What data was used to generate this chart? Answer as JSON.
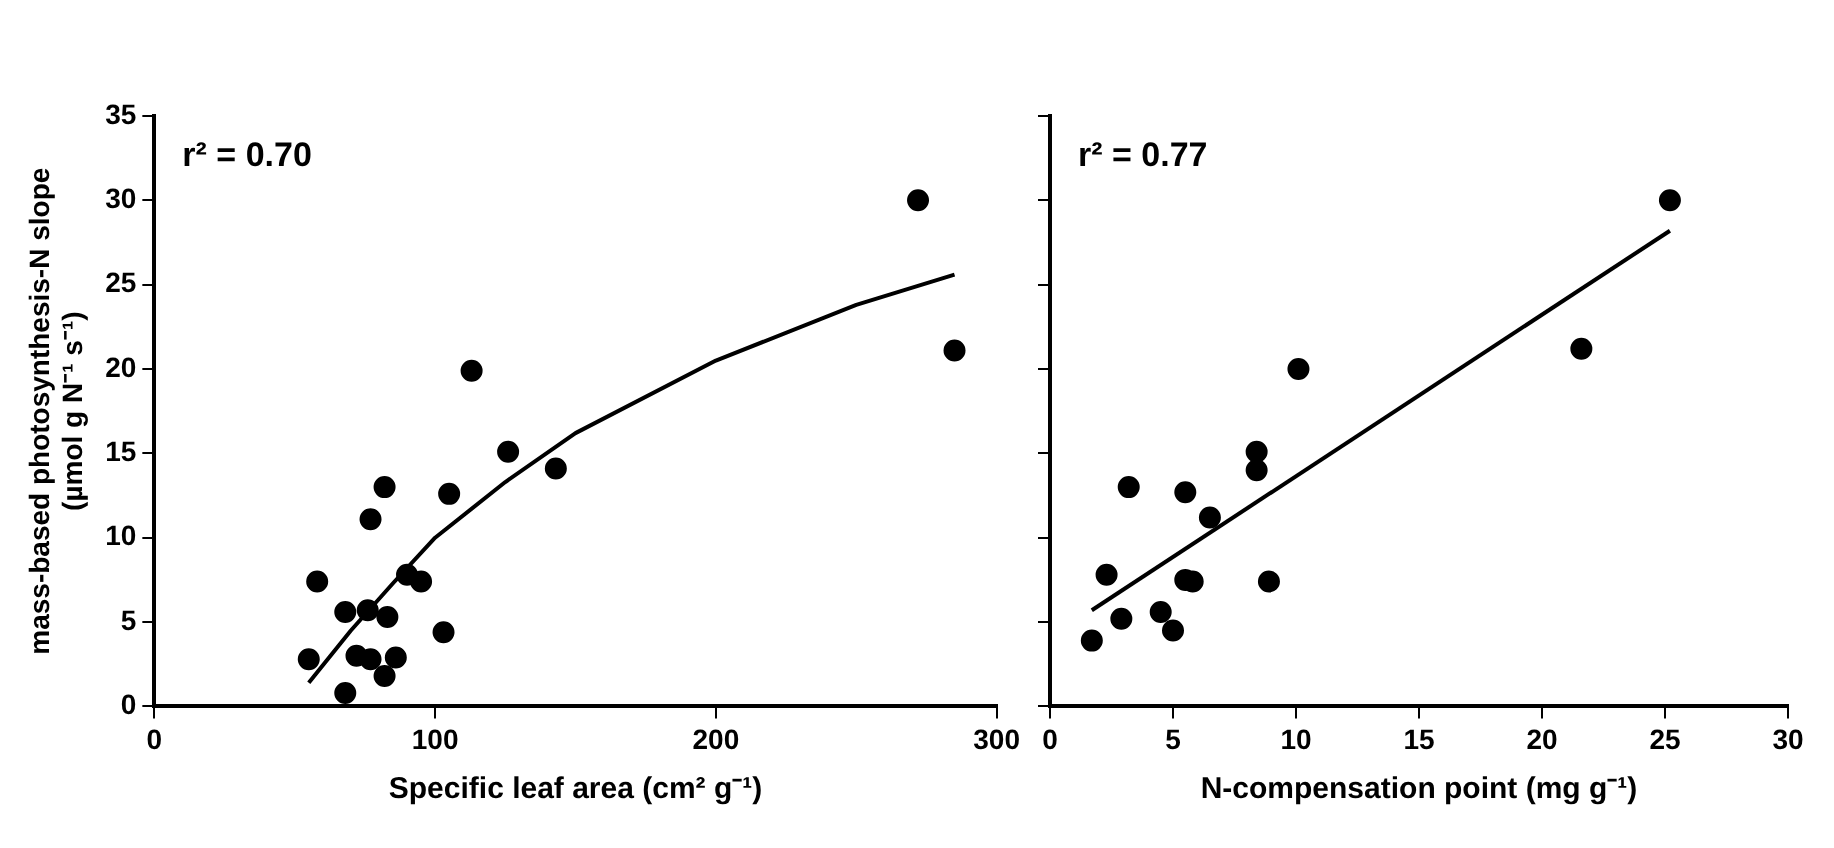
{
  "chart_data": [
    {
      "type": "scatter",
      "xlabel": "Specific leaf area (cm² g⁻¹)",
      "ylabel": "mass-based photosynthesis-N slope\n(µmol g N⁻¹ s⁻¹)",
      "annotations": [
        "r² = 0.70"
      ],
      "xlim": [
        0,
        300
      ],
      "xticks": [
        0,
        100,
        200,
        300
      ],
      "ylim": [
        0,
        35
      ],
      "yticks": [
        0,
        5,
        10,
        15,
        20,
        25,
        30,
        35
      ],
      "grid": false,
      "legend": false,
      "series": [
        {
          "marker": "circle",
          "color": "#000000",
          "x": [
            55,
            58,
            68,
            68,
            72,
            76,
            77,
            77,
            82,
            83,
            82,
            86,
            90,
            95,
            103,
            105,
            113,
            126,
            143,
            272,
            285
          ],
          "values": [
            2.8,
            7.4,
            0.8,
            5.6,
            3.0,
            5.7,
            2.8,
            11.1,
            13.0,
            5.3,
            1.8,
            2.9,
            7.8,
            7.4,
            4.4,
            12.6,
            19.9,
            15.1,
            14.1,
            30.0,
            21.1
          ]
        },
        {
          "type": "line",
          "color": "#000000",
          "x": [
            55,
            70,
            85,
            100,
            125,
            150,
            200,
            250,
            285
          ],
          "values": [
            1.4,
            4.5,
            7.3,
            10,
            13.3,
            16.2,
            20.5,
            23.8,
            25.6
          ]
        }
      ]
    },
    {
      "type": "scatter",
      "xlabel": "N-compensation point (mg g⁻¹)",
      "annotations": [
        "r² = 0.77"
      ],
      "xlim": [
        0,
        30
      ],
      "xticks": [
        0,
        5,
        10,
        15,
        20,
        25,
        30
      ],
      "ylim": [
        0,
        35
      ],
      "yticks": [
        0,
        5,
        10,
        15,
        20,
        25,
        30,
        35
      ],
      "tick_labels": "x",
      "grid": false,
      "legend": false,
      "series": [
        {
          "marker": "circle",
          "color": "#000000",
          "x": [
            1.7,
            2.3,
            2.9,
            3.2,
            4.5,
            5.0,
            5.5,
            5.5,
            5.8,
            6.5,
            8.4,
            8.4,
            8.9,
            10.1,
            21.6,
            25.2
          ],
          "values": [
            3.9,
            7.8,
            5.2,
            13.0,
            5.6,
            4.5,
            12.7,
            7.5,
            7.4,
            11.2,
            15.1,
            14.0,
            7.4,
            20.0,
            21.2,
            30.0
          ]
        },
        {
          "type": "line",
          "color": "#000000",
          "x": [
            1.7,
            25.2
          ],
          "values": [
            5.7,
            28.2
          ]
        }
      ]
    }
  ]
}
